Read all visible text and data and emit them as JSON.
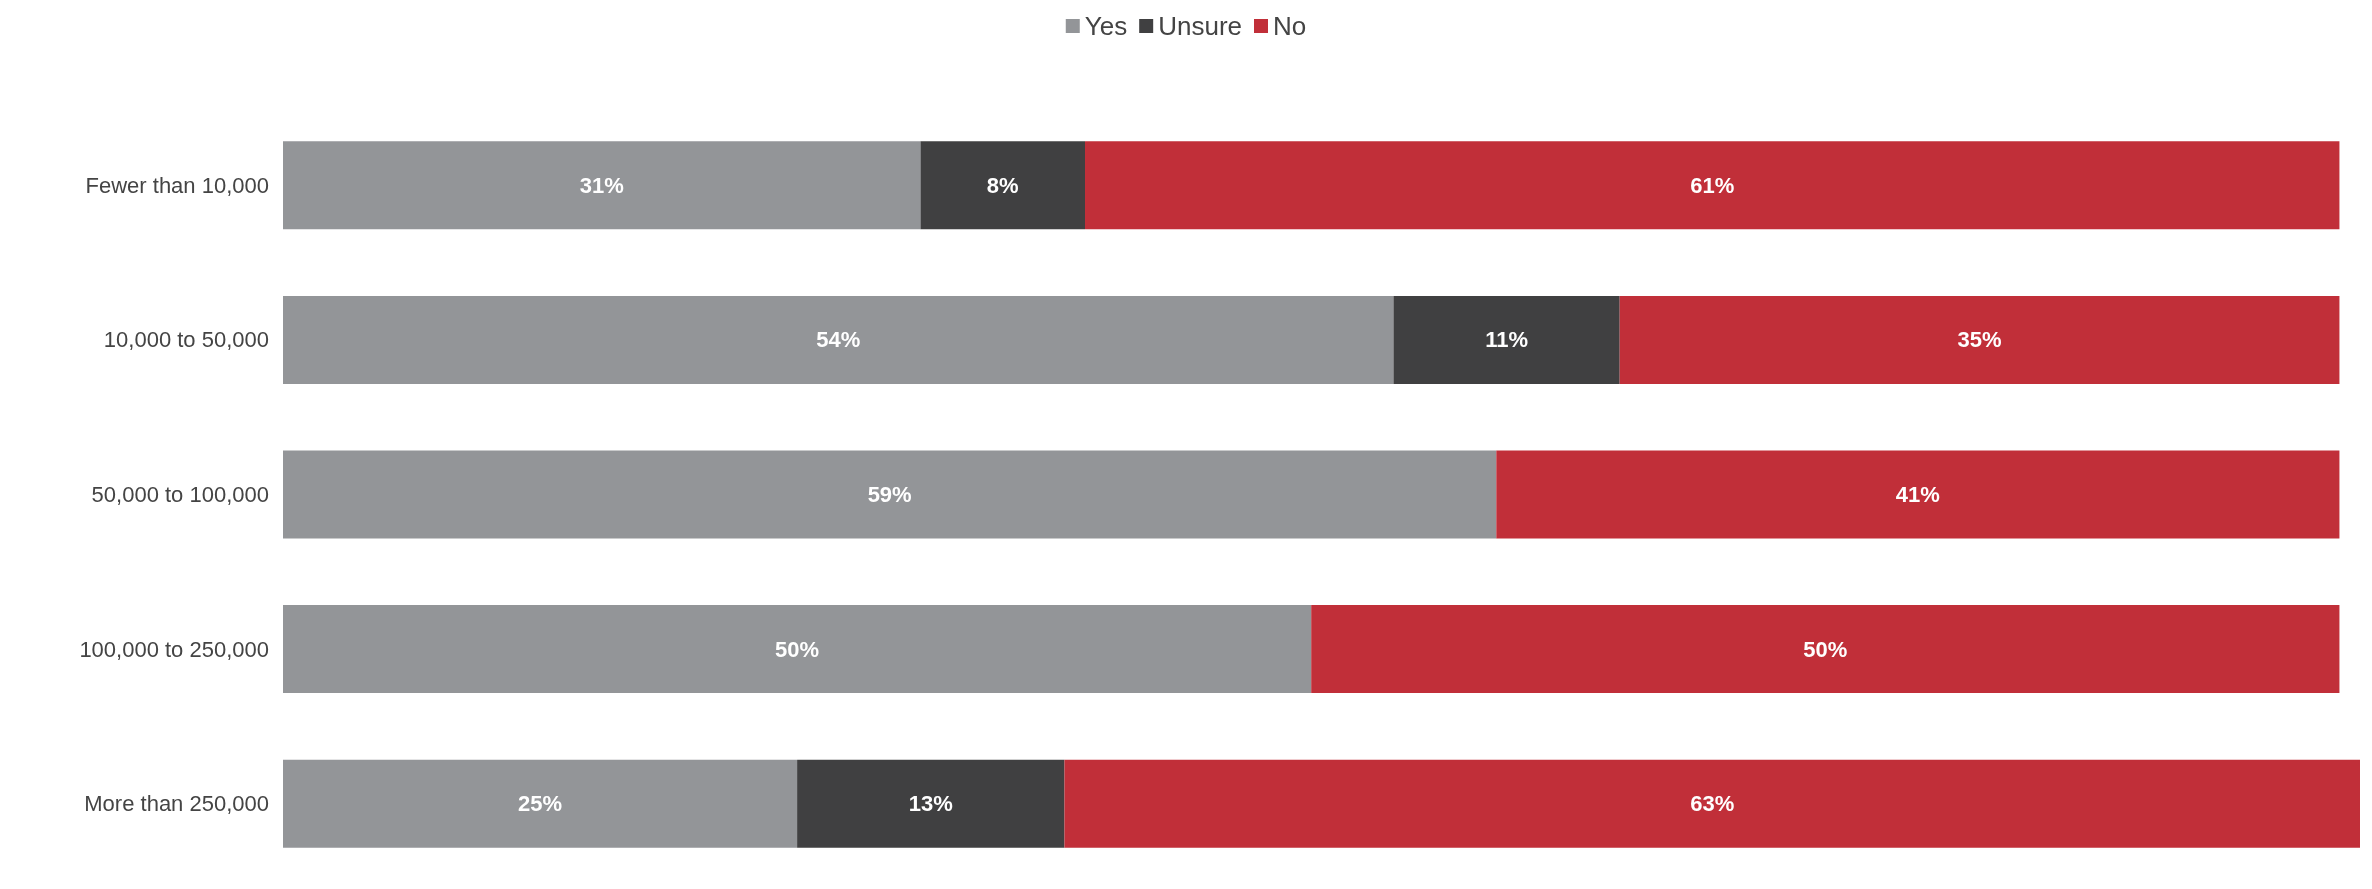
{
  "chart_data": {
    "type": "bar",
    "orientation": "horizontal",
    "stacked": true,
    "legend": "top",
    "categories": [
      "Fewer than 10,000",
      "10,000 to 50,000",
      "50,000 to 100,000",
      "100,000 to 250,000",
      "More than 250,000"
    ],
    "series": [
      {
        "name": "Yes",
        "color": "#939598",
        "values": [
          31,
          54,
          59,
          50,
          25
        ],
        "value_labels": [
          "31%",
          "54%",
          "59%",
          "50%",
          "25%"
        ]
      },
      {
        "name": "Unsure",
        "color": "#404041",
        "values": [
          8,
          11,
          null,
          null,
          13
        ],
        "value_labels": [
          "8%",
          "11%",
          null,
          null,
          "13%"
        ]
      },
      {
        "name": "No",
        "color": "#c12f39",
        "values": [
          61,
          35,
          41,
          50,
          63
        ],
        "value_labels": [
          "61%",
          "35%",
          "41%",
          "50%",
          "63%"
        ]
      }
    ]
  }
}
